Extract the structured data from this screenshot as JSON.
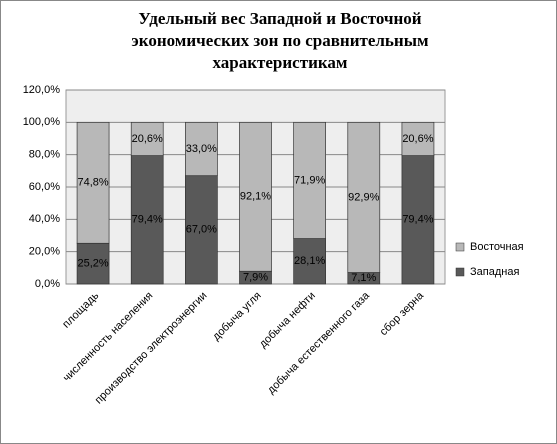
{
  "chart_data": {
    "type": "stacked_bar",
    "title": "Удельный вес Западной и Восточной экономических зон по сравнительным характеристикам",
    "categories": [
      "площадь",
      "численность населения",
      "производство электроэнергии",
      "добыча угля",
      "добыча нефти",
      "добыча естественного газа",
      "сбор зерна"
    ],
    "series": [
      {
        "name": "Западная",
        "color": "#595959",
        "values": [
          25.2,
          79.4,
          67.0,
          7.9,
          28.1,
          7.1,
          79.4
        ],
        "value_labels": [
          "25,2%",
          "79,4%",
          "67,0%",
          "7,9%",
          "28,1%",
          "7,1%",
          "79,4%"
        ]
      },
      {
        "name": "Восточная",
        "color": "#b8b8b8",
        "values": [
          74.8,
          20.6,
          33.0,
          92.1,
          71.9,
          92.9,
          20.6
        ],
        "value_labels": [
          "74,8%",
          "20,6%",
          "33,0%",
          "92,1%",
          "71,9%",
          "92,9%",
          "20,6%"
        ]
      }
    ],
    "ylim": [
      0,
      120
    ],
    "yticks": [
      {
        "value": 0,
        "label": "0,0%"
      },
      {
        "value": 20,
        "label": "20,0%"
      },
      {
        "value": 40,
        "label": "40,0%"
      },
      {
        "value": 60,
        "label": "60,0%"
      },
      {
        "value": 80,
        "label": "80,0%"
      },
      {
        "value": 100,
        "label": "100,0%"
      },
      {
        "value": 120,
        "label": "120,0%"
      }
    ],
    "grid": true,
    "legend": "right"
  }
}
